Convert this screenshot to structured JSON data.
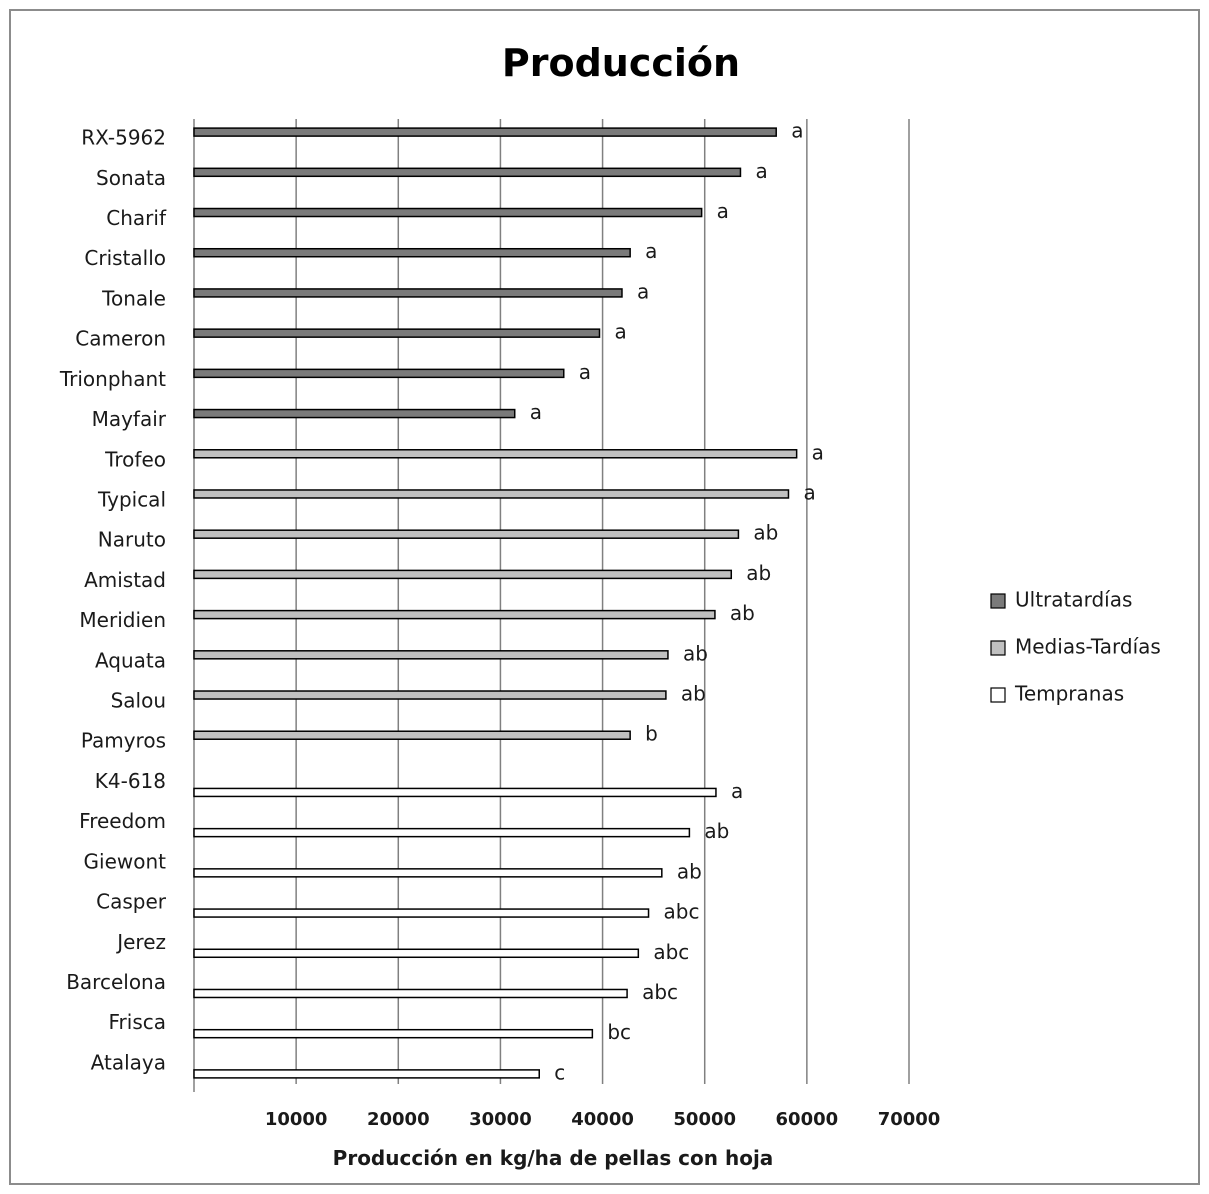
{
  "chart_data": {
    "type": "bar",
    "orientation": "horizontal",
    "title": "Producción",
    "xlabel": "Producción en kg/ha de pellas con hoja",
    "ylabel": "",
    "xlim": [
      0,
      70000
    ],
    "xticks": [
      10000,
      20000,
      30000,
      40000,
      50000,
      60000,
      70000
    ],
    "grid": "vertical major gridlines",
    "legend_position": "right",
    "colors": {
      "Ultratardías": "#7a7a7a",
      "Medias-Tardías": "#c0c0c0",
      "Tempranas": "#ffffff",
      "bar_border": "#000000",
      "grid": "#808080"
    },
    "series": [
      {
        "name": "Ultratardías",
        "categories": [
          "RX-5962",
          "Sonata",
          "Charif",
          "Cristallo",
          "Tonale",
          "Cameron",
          "Trionphant",
          "Mayfair"
        ],
        "values": [
          57000,
          53500,
          49700,
          42700,
          41900,
          39700,
          36200,
          31400
        ],
        "significance": [
          "a",
          "a",
          "a",
          "a",
          "a",
          "a",
          "a",
          "a"
        ]
      },
      {
        "name": "Medias-Tardías",
        "categories": [
          "Trofeo",
          "Typical",
          "Naruto",
          "Amistad",
          "Meridien",
          "Aquata",
          "Salou",
          "Pamyros"
        ],
        "values": [
          59000,
          58200,
          53300,
          52600,
          51000,
          46400,
          46200,
          42700
        ],
        "significance": [
          "a",
          "a",
          "ab",
          "ab",
          "ab",
          "ab",
          "ab",
          "b"
        ]
      },
      {
        "name": "Tempranas",
        "categories": [
          "K4-618",
          "Freedom",
          "Giewont",
          "Casper",
          "Jerez",
          "Barcelona",
          "Frisca",
          "Atalaya"
        ],
        "values": [
          51100,
          48500,
          45800,
          44500,
          43500,
          42400,
          39000,
          33800
        ],
        "significance": [
          "a",
          "ab",
          "ab",
          "abc",
          "abc",
          "abc",
          "bc",
          "c"
        ]
      }
    ]
  }
}
